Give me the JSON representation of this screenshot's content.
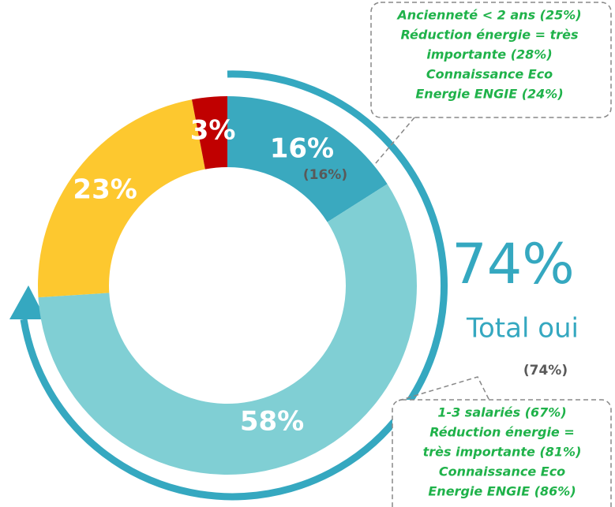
{
  "chart_data": {
    "type": "donut",
    "values": [
      16,
      58,
      23,
      3
    ],
    "value_labels": [
      "16%",
      "58%",
      "23%",
      "3%"
    ],
    "colors": [
      "#3aa9bf",
      "#80cfd4",
      "#fdc82f",
      "#c00000"
    ],
    "sub_label": "(16%)",
    "total": {
      "value_label": "74%",
      "label": "Total oui",
      "note": "(74%)"
    },
    "callouts": [
      {
        "lines": [
          "Ancienneté < 2 ans (25%)",
          "Réduction énergie = très",
          "importante (28%)",
          "Connaissance Eco",
          "Energie ENGIE (24%)"
        ]
      },
      {
        "lines": [
          "1-3 salariés (67%)",
          "Réduction énergie =",
          "très importante (81%)",
          "Connaissance Eco",
          "Energie ENGIE (86%)"
        ]
      }
    ]
  }
}
